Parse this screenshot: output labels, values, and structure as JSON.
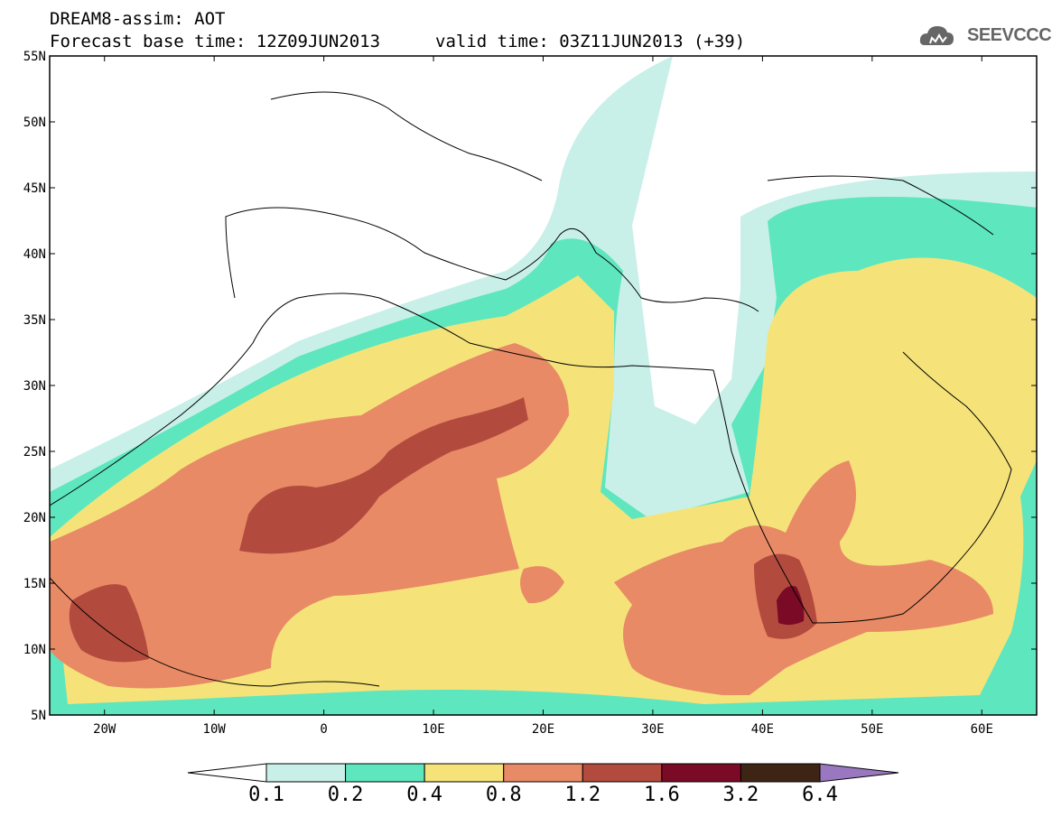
{
  "header": {
    "title": "DREAM8-assim: AOT",
    "base_time": "Forecast base time: 12Z09JUN2013",
    "valid_time": "valid time: 03Z11JUN2013 (+39)"
  },
  "logo": {
    "name": "cloud-icon",
    "text": "SEEVCCC"
  },
  "map": {
    "lon_range": [
      -25,
      65
    ],
    "lat_range": [
      5,
      55
    ],
    "lat_ticks": [
      "55N",
      "50N",
      "45N",
      "40N",
      "35N",
      "30N",
      "25N",
      "20N",
      "15N",
      "10N",
      "5N"
    ],
    "lon_ticks": [
      "20W",
      "10W",
      "0",
      "10E",
      "20E",
      "30E",
      "40E",
      "50E",
      "60E"
    ]
  },
  "colorbar": {
    "levels": [
      "0.1",
      "0.2",
      "0.4",
      "0.8",
      "1.2",
      "1.6",
      "3.2",
      "6.4"
    ],
    "colors": [
      "#ffffff",
      "#c8f0e8",
      "#5ee6be",
      "#f5e37a",
      "#e98a66",
      "#b24b3e",
      "#7a0a26",
      "#3e2414",
      "#9a78c0"
    ]
  }
}
